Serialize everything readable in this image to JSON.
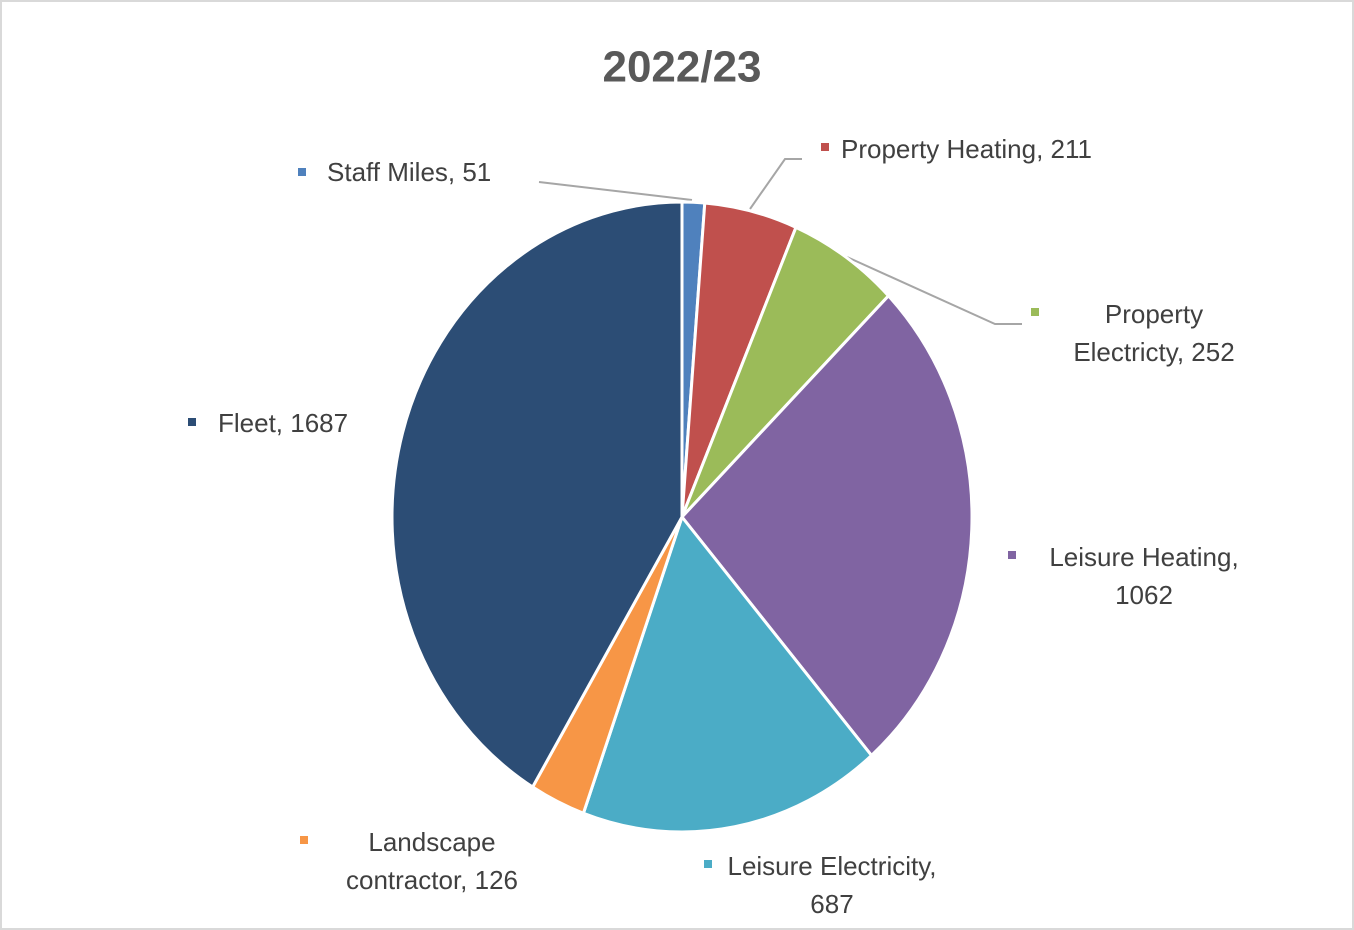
{
  "chart_data": {
    "type": "pie",
    "title": "2022/23",
    "values": [
      51,
      211,
      252,
      1062,
      687,
      126,
      1687
    ],
    "value_labels": [
      "Staff Miles, 51",
      "Property Heating, 211",
      "Property Electricty, 252",
      "Leisure Heating, 1062",
      "Leisure Electricity, 687",
      "Landscape contractor, 126",
      "Fleet, 1687"
    ],
    "colors": [
      "#4f81bd",
      "#c0504d",
      "#9bbb59",
      "#8064a2",
      "#4bacc6",
      "#f79646",
      "#2c4d75"
    ]
  }
}
